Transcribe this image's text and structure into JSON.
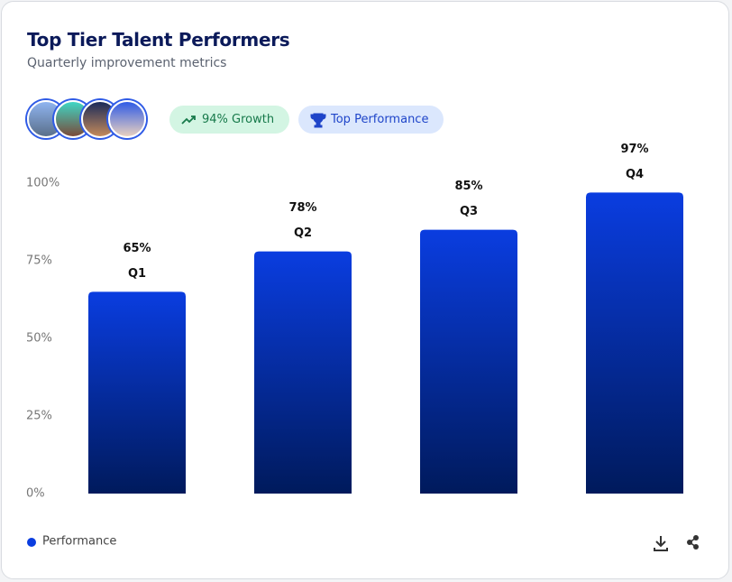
{
  "header": {
    "title": "Top Tier Talent Performers",
    "subtitle": "Quarterly improvement metrics"
  },
  "badges": [
    "94% Growth",
    "Top Performance"
  ],
  "chart_data": {
    "type": "bar",
    "categories": [
      "Q1",
      "Q2",
      "Q3",
      "Q4"
    ],
    "series": [
      {
        "name": "Performance",
        "color": "#0a3de0",
        "values": [
          65,
          78,
          85,
          97
        ],
        "value_labels": [
          "65%",
          "78%",
          "85%",
          "97%"
        ]
      }
    ],
    "ylim": [
      0,
      100
    ],
    "yticks": [
      {
        "value": 0,
        "label": "0%"
      },
      {
        "value": 25,
        "label": "25%"
      },
      {
        "value": 50,
        "label": "50%"
      },
      {
        "value": 75,
        "label": "75%"
      },
      {
        "value": 100,
        "label": "100%"
      }
    ],
    "grid": false
  }
}
